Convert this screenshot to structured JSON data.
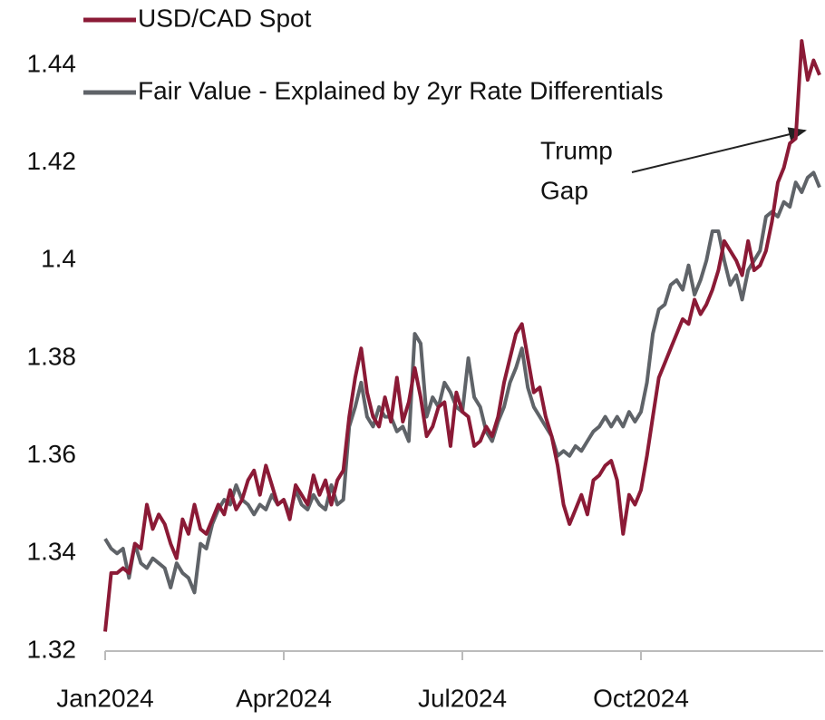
{
  "chart_data": {
    "type": "line",
    "categories": [
      "Jan2024",
      null,
      null,
      null,
      null,
      null,
      null,
      null,
      null,
      null,
      null,
      null,
      null,
      null,
      null,
      null,
      null,
      null,
      null,
      null,
      null,
      null,
      null,
      null,
      null,
      null,
      null,
      null,
      null,
      null,
      "Apr2024",
      null,
      null,
      null,
      null,
      null,
      null,
      null,
      null,
      null,
      null,
      null,
      null,
      null,
      null,
      null,
      null,
      null,
      null,
      null,
      null,
      null,
      null,
      null,
      null,
      null,
      null,
      null,
      null,
      null,
      "Jul2024",
      null,
      null,
      null,
      null,
      null,
      null,
      null,
      null,
      null,
      null,
      null,
      null,
      null,
      null,
      null,
      null,
      null,
      null,
      null,
      null,
      null,
      null,
      null,
      null,
      null,
      null,
      null,
      null,
      null,
      "Oct2024",
      null,
      null,
      null,
      null,
      null,
      null,
      null,
      null,
      null,
      null,
      null,
      null,
      null,
      null,
      null,
      null,
      null,
      null,
      null,
      null,
      null,
      null,
      null,
      null,
      null,
      null,
      null,
      null,
      null,
      null
    ],
    "series": [
      {
        "name": "USD/CAD Spot",
        "color": "#8b1a36",
        "values": [
          1.324,
          1.336,
          1.336,
          1.337,
          1.336,
          1.342,
          1.341,
          1.35,
          1.345,
          1.348,
          1.346,
          1.342,
          1.339,
          1.347,
          1.344,
          1.35,
          1.345,
          1.344,
          1.347,
          1.35,
          1.348,
          1.353,
          1.349,
          1.351,
          1.355,
          1.357,
          1.352,
          1.358,
          1.354,
          1.35,
          1.351,
          1.347,
          1.354,
          1.352,
          1.35,
          1.356,
          1.352,
          1.355,
          1.35,
          1.355,
          1.357,
          1.368,
          1.376,
          1.382,
          1.373,
          1.368,
          1.366,
          1.372,
          1.367,
          1.376,
          1.367,
          1.371,
          1.378,
          1.372,
          1.364,
          1.366,
          1.37,
          1.371,
          1.362,
          1.373,
          1.369,
          1.368,
          1.362,
          1.363,
          1.366,
          1.364,
          1.368,
          1.375,
          1.38,
          1.385,
          1.387,
          1.38,
          1.373,
          1.374,
          1.368,
          1.364,
          1.358,
          1.35,
          1.346,
          1.349,
          1.352,
          1.348,
          1.355,
          1.356,
          1.358,
          1.359,
          1.355,
          1.344,
          1.352,
          1.35,
          1.353,
          1.36,
          1.368,
          1.376,
          1.379,
          1.382,
          1.385,
          1.388,
          1.387,
          1.392,
          1.389,
          1.391,
          1.394,
          1.398,
          1.404,
          1.402,
          1.4,
          1.397,
          1.404,
          1.398,
          1.399,
          1.402,
          1.408,
          1.416,
          1.419,
          1.424,
          1.425,
          1.445,
          1.437,
          1.441,
          1.438
        ]
      },
      {
        "name": "Fair Value - Explained by 2yr Rate Differentials",
        "color": "#5f6368",
        "values": [
          1.343,
          1.341,
          1.34,
          1.341,
          1.335,
          1.342,
          1.338,
          1.337,
          1.339,
          1.338,
          1.337,
          1.333,
          1.338,
          1.336,
          1.335,
          1.332,
          1.342,
          1.341,
          1.346,
          1.349,
          1.351,
          1.35,
          1.354,
          1.351,
          1.35,
          1.348,
          1.35,
          1.349,
          1.352,
          1.35,
          1.351,
          1.348,
          1.353,
          1.35,
          1.349,
          1.352,
          1.35,
          1.349,
          1.354,
          1.35,
          1.351,
          1.366,
          1.37,
          1.375,
          1.368,
          1.366,
          1.37,
          1.368,
          1.368,
          1.365,
          1.366,
          1.363,
          1.385,
          1.383,
          1.368,
          1.372,
          1.37,
          1.375,
          1.373,
          1.37,
          1.369,
          1.38,
          1.372,
          1.37,
          1.365,
          1.363,
          1.367,
          1.37,
          1.375,
          1.378,
          1.382,
          1.374,
          1.37,
          1.368,
          1.366,
          1.364,
          1.36,
          1.361,
          1.36,
          1.362,
          1.361,
          1.363,
          1.365,
          1.366,
          1.368,
          1.366,
          1.368,
          1.366,
          1.369,
          1.367,
          1.369,
          1.375,
          1.385,
          1.39,
          1.391,
          1.395,
          1.396,
          1.394,
          1.399,
          1.393,
          1.396,
          1.4,
          1.406,
          1.406,
          1.4,
          1.395,
          1.397,
          1.392,
          1.398,
          1.4,
          1.402,
          1.409,
          1.41,
          1.409,
          1.412,
          1.411,
          1.416,
          1.414,
          1.417,
          1.418,
          1.415
        ]
      }
    ],
    "annotation": [
      "Trump",
      "Gap"
    ],
    "ylim": [
      1.32,
      1.44
    ],
    "yticks": [
      1.32,
      1.34,
      1.36,
      1.38,
      1.4,
      1.42,
      1.44
    ],
    "grid": false,
    "legend": "top-left"
  }
}
